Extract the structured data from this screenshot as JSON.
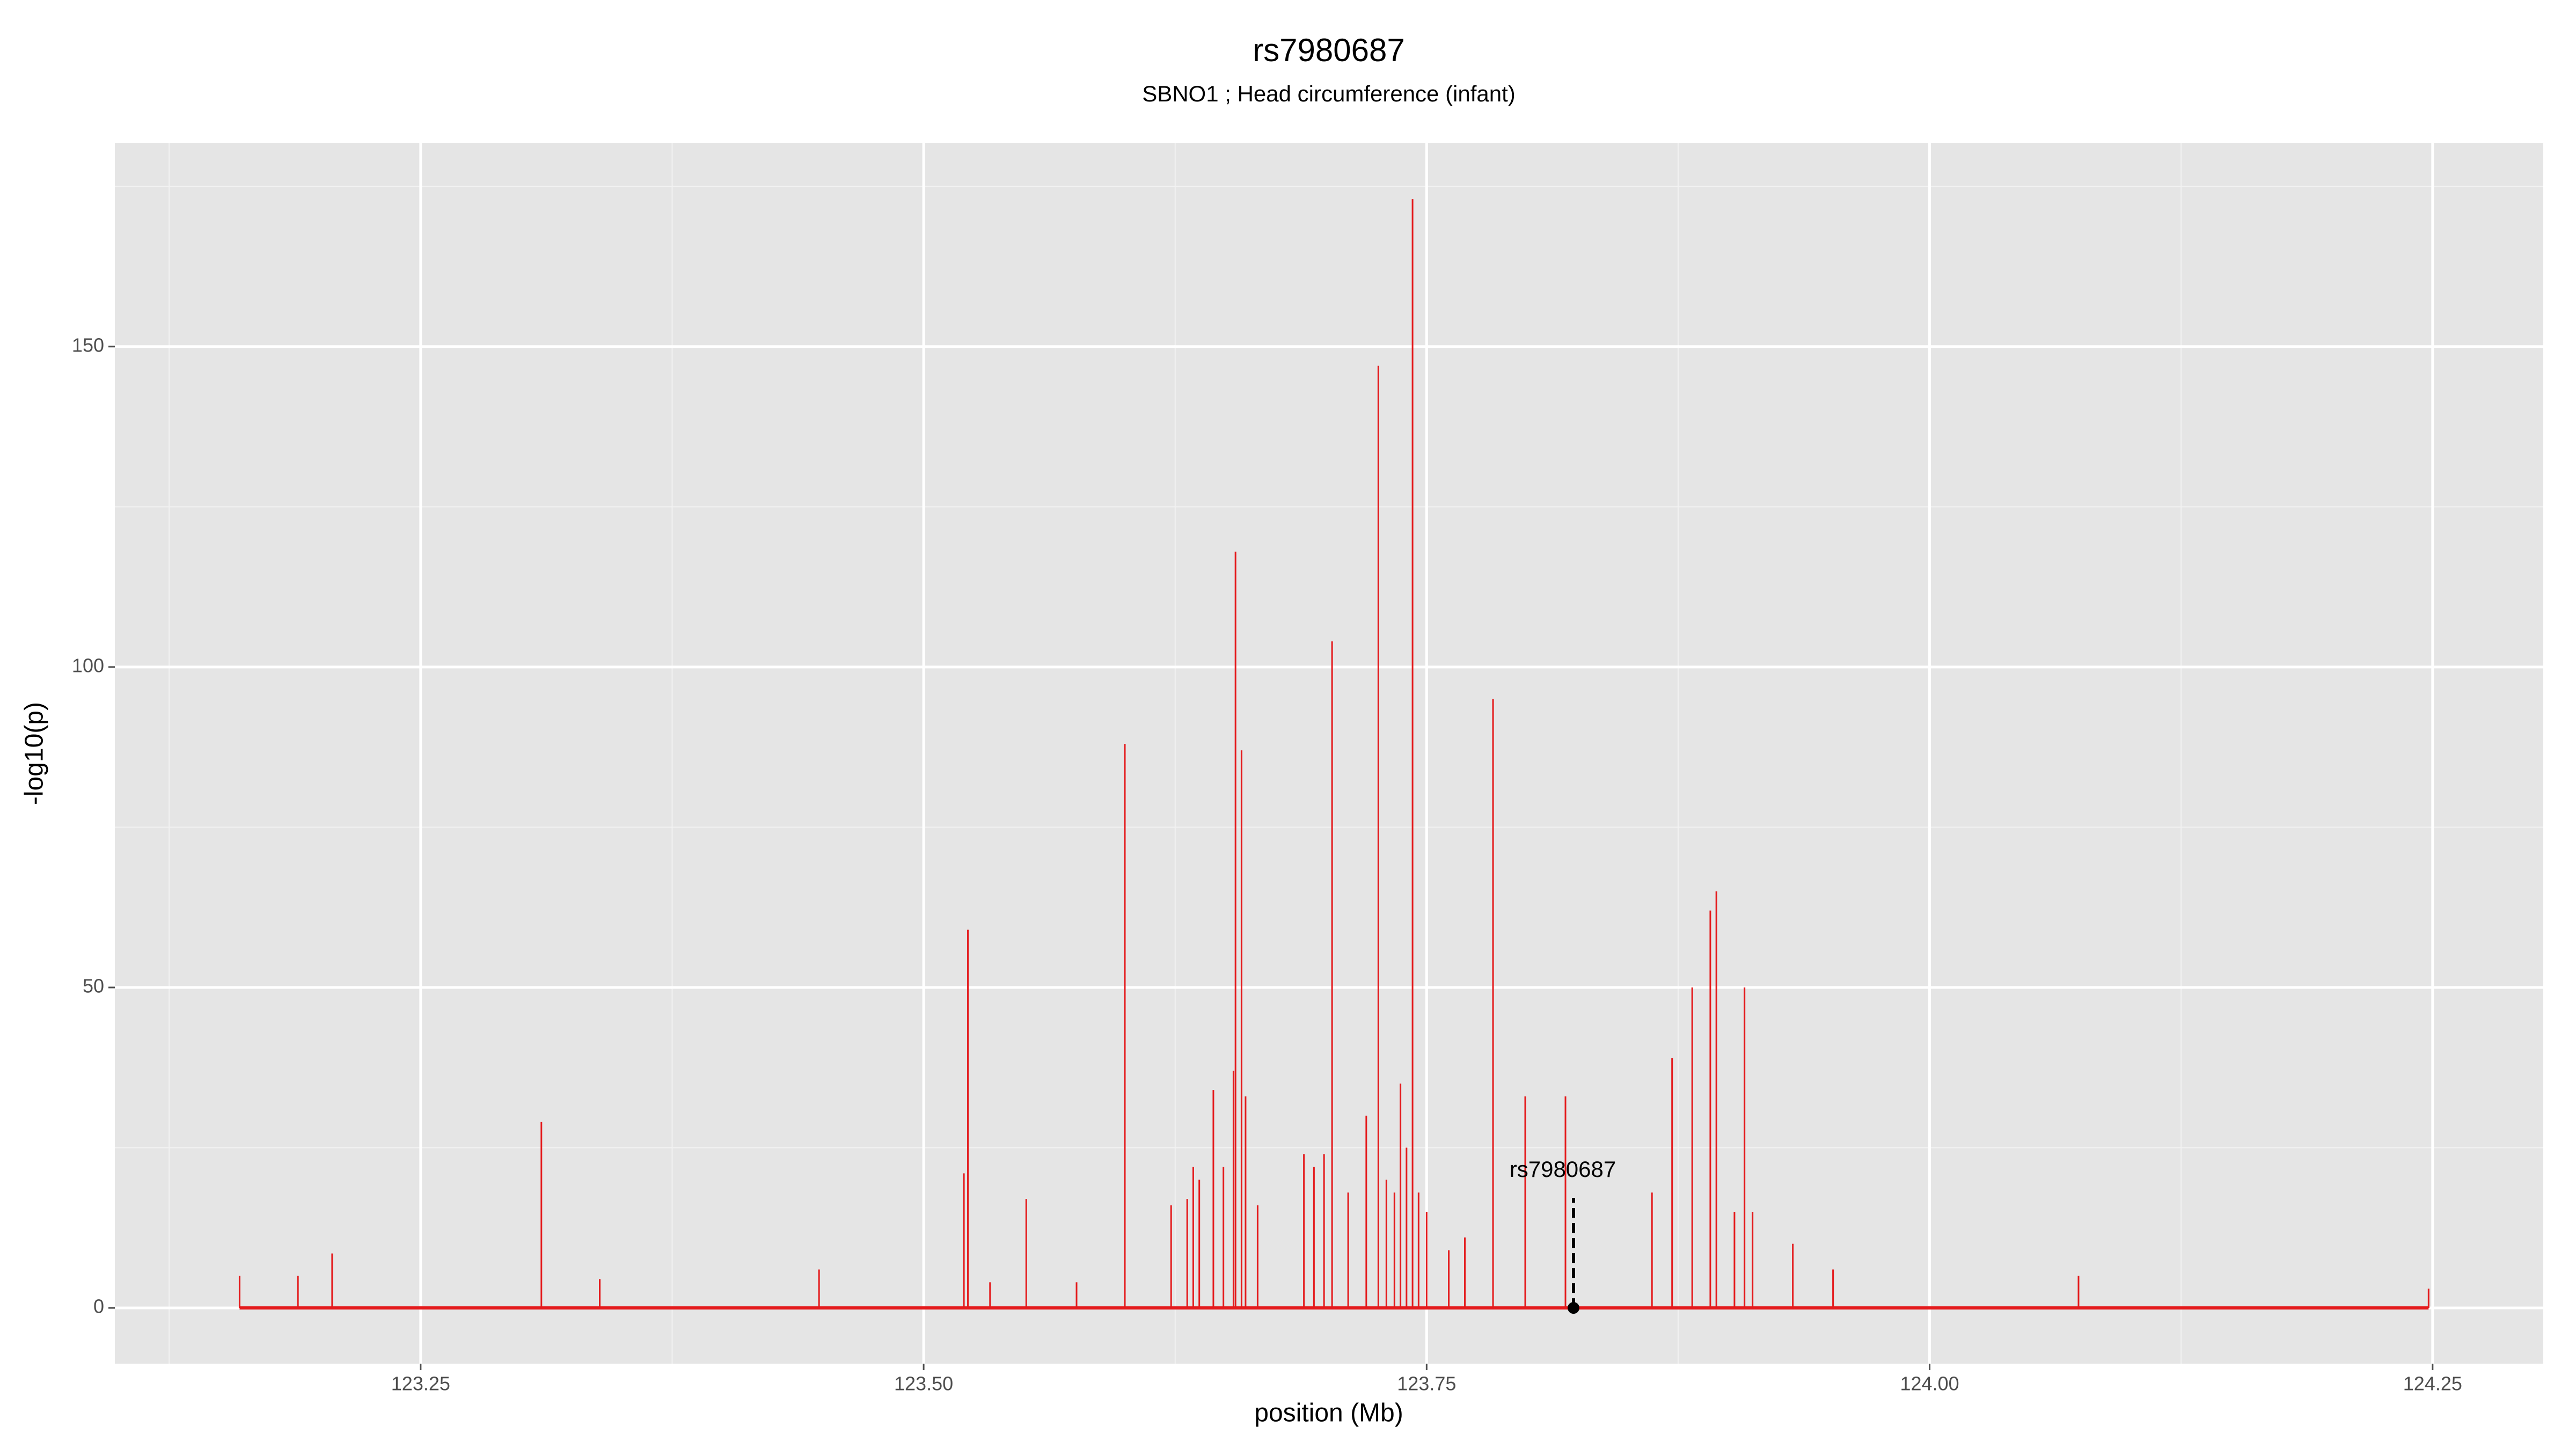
{
  "chart_data": {
    "type": "spike",
    "title": "rs7980687",
    "subtitle": "SBNO1 ; Head circumference (infant)",
    "x_label": "position (Mb)",
    "y_label": "-log10(p)",
    "color": "#e41a1c",
    "grid": true,
    "xlim": [
      123.098,
      124.305
    ],
    "ylim": [
      -8.7,
      181.8
    ],
    "xticks": [
      123.25,
      {
        "value": 123.5,
        "label": "123.50"
      },
      123.75,
      {
        "value": 124.0,
        "label": "124.00"
      },
      124.25
    ],
    "yticks": [
      0,
      50,
      100,
      150
    ],
    "x": [
      123.16,
      123.189,
      123.206,
      123.31,
      123.339,
      123.448,
      123.52,
      123.522,
      123.533,
      123.551,
      123.576,
      123.6,
      123.623,
      123.631,
      123.634,
      123.637,
      123.644,
      123.649,
      123.654,
      123.655,
      123.658,
      123.66,
      123.666,
      123.689,
      123.694,
      123.699,
      123.703,
      123.711,
      123.72,
      123.726,
      123.73,
      123.734,
      123.737,
      123.74,
      123.743,
      123.746,
      123.75,
      123.761,
      123.769,
      123.783,
      123.799,
      123.819,
      123.862,
      123.872,
      123.882,
      123.891,
      123.894,
      123.903,
      123.908,
      123.912,
      123.932,
      123.952,
      124.074,
      124.248
    ],
    "values": [
      5,
      5,
      8.5,
      29,
      4.5,
      6,
      21,
      59,
      4,
      17,
      4,
      88,
      16,
      17,
      22,
      20,
      34,
      22,
      37,
      118,
      87,
      33,
      16,
      24,
      22,
      24,
      104,
      18,
      30,
      147,
      20,
      18,
      35,
      25,
      173,
      18,
      15,
      9,
      11,
      95,
      33,
      33,
      18,
      39,
      50,
      62,
      65,
      15,
      50,
      15,
      10,
      6,
      5,
      3
    ],
    "annotation": {
      "label": "rs7980687",
      "x": 123.823,
      "y": 0
    }
  }
}
